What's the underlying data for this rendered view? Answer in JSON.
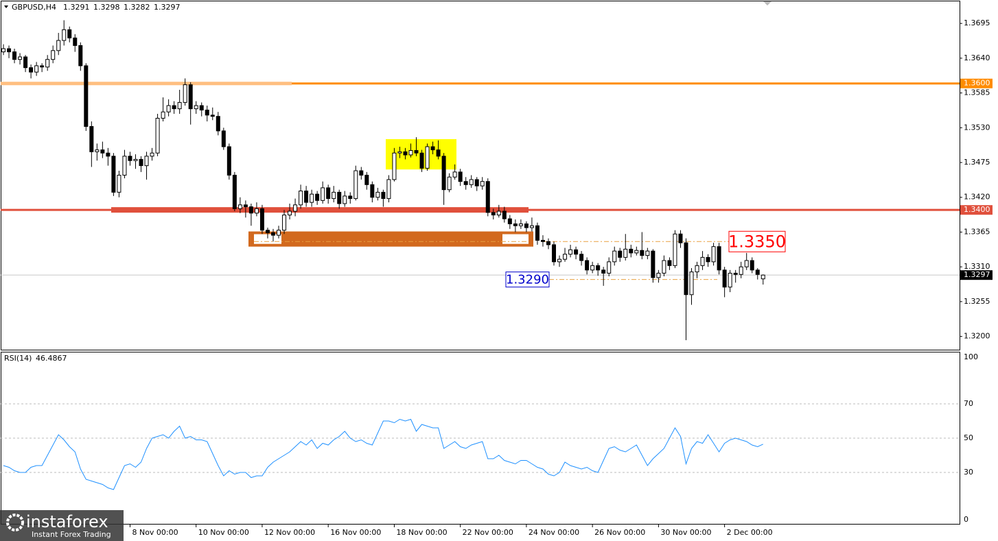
{
  "chart_data": {
    "type": "candlestick",
    "symbol": "GBPUSD,H4",
    "categories": [
      null,
      null,
      null,
      null,
      null,
      null,
      null,
      null,
      null,
      null,
      null,
      null,
      null,
      null,
      null,
      null,
      null,
      null,
      null,
      null,
      null,
      null,
      null,
      "8 Nov 00:00",
      null,
      null,
      null,
      null,
      null,
      null,
      null,
      null,
      null,
      null,
      null,
      "10 Nov 00:00",
      null,
      null,
      null,
      null,
      null,
      null,
      null,
      null,
      null,
      null,
      null,
      "12 Nov 00:00",
      null,
      null,
      null,
      null,
      null,
      null,
      null,
      null,
      null,
      null,
      null,
      "16 Nov 00:00",
      null,
      null,
      null,
      null,
      null,
      null,
      null,
      null,
      null,
      null,
      null,
      "18 Nov 00:00",
      null,
      null,
      null,
      null,
      null,
      null,
      null,
      null,
      null,
      null,
      null,
      "22 Nov 00:00",
      null,
      null,
      null,
      null,
      null,
      null,
      null,
      null,
      null,
      null,
      null,
      "24 Nov 00:00",
      null,
      null,
      null,
      null,
      null,
      null,
      null,
      null,
      null,
      null,
      null,
      "26 Nov 00:00",
      null,
      null,
      null,
      null,
      null,
      null,
      null,
      null,
      null,
      null,
      null,
      "30 Nov 00:00",
      null,
      null,
      null,
      null,
      null,
      null,
      null,
      null,
      null,
      null,
      null,
      "2 Dec 00:00",
      null,
      null,
      null,
      null,
      null,
      null,
      null
    ],
    "ohlc": [
      [
        1.365,
        1.3662,
        1.3645,
        1.3655
      ],
      [
        1.3655,
        1.366,
        1.364,
        1.365
      ],
      [
        1.365,
        1.3655,
        1.3632,
        1.3638
      ],
      [
        1.3638,
        1.3648,
        1.363,
        1.3642
      ],
      [
        1.3642,
        1.3645,
        1.3618,
        1.3625
      ],
      [
        1.3625,
        1.363,
        1.3608,
        1.3618
      ],
      [
        1.3618,
        1.3634,
        1.3612,
        1.3628
      ],
      [
        1.3628,
        1.3632,
        1.3618,
        1.3626
      ],
      [
        1.3626,
        1.3645,
        1.362,
        1.3638
      ],
      [
        1.3638,
        1.366,
        1.3632,
        1.3652
      ],
      [
        1.3652,
        1.368,
        1.3645,
        1.3668
      ],
      [
        1.3668,
        1.37,
        1.366,
        1.3685
      ],
      [
        1.3685,
        1.369,
        1.3665,
        1.3672
      ],
      [
        1.3672,
        1.3678,
        1.365,
        1.366
      ],
      [
        1.366,
        1.3665,
        1.362,
        1.3628
      ],
      [
        1.3628,
        1.3632,
        1.3525,
        1.3532
      ],
      [
        1.3532,
        1.354,
        1.3468,
        1.3492
      ],
      [
        1.3492,
        1.3505,
        1.3478,
        1.3495
      ],
      [
        1.3495,
        1.3508,
        1.3482,
        1.349
      ],
      [
        1.349,
        1.3498,
        1.347,
        1.3485
      ],
      [
        1.3485,
        1.349,
        1.3422,
        1.3428
      ],
      [
        1.3428,
        1.3462,
        1.342,
        1.3455
      ],
      [
        1.3455,
        1.3495,
        1.345,
        1.3485
      ],
      [
        1.3485,
        1.3492,
        1.347,
        1.3478
      ],
      [
        1.3478,
        1.3488,
        1.3465,
        1.348
      ],
      [
        1.348,
        1.3485,
        1.346,
        1.347
      ],
      [
        1.347,
        1.3492,
        1.3448,
        1.3485
      ],
      [
        1.3485,
        1.3498,
        1.3478,
        1.349
      ],
      [
        1.349,
        1.3552,
        1.3485,
        1.3545
      ],
      [
        1.3545,
        1.3578,
        1.354,
        1.3555
      ],
      [
        1.3555,
        1.3575,
        1.3548,
        1.3565
      ],
      [
        1.3565,
        1.3572,
        1.3552,
        1.356
      ],
      [
        1.356,
        1.359,
        1.3552,
        1.357
      ],
      [
        1.357,
        1.3608,
        1.3565,
        1.3598
      ],
      [
        1.3598,
        1.3602,
        1.3535,
        1.356
      ],
      [
        1.356,
        1.3572,
        1.3552,
        1.3565
      ],
      [
        1.3565,
        1.357,
        1.3548,
        1.3558
      ],
      [
        1.3558,
        1.3565,
        1.354,
        1.355
      ],
      [
        1.355,
        1.3562,
        1.3542,
        1.3548
      ],
      [
        1.3548,
        1.3555,
        1.3518,
        1.3525
      ],
      [
        1.3525,
        1.353,
        1.3495,
        1.35
      ],
      [
        1.35,
        1.3505,
        1.3448,
        1.3455
      ],
      [
        1.3455,
        1.346,
        1.3398,
        1.3402
      ],
      [
        1.3402,
        1.342,
        1.3395,
        1.3408
      ],
      [
        1.3408,
        1.3415,
        1.3388,
        1.3405
      ],
      [
        1.3405,
        1.341,
        1.3375,
        1.3395
      ],
      [
        1.3395,
        1.3412,
        1.339,
        1.3402
      ],
      [
        1.3402,
        1.3408,
        1.3362,
        1.3368
      ],
      [
        1.3368,
        1.3372,
        1.3355,
        1.3364
      ],
      [
        1.3364,
        1.337,
        1.335,
        1.336
      ],
      [
        1.336,
        1.3375,
        1.3355,
        1.3368
      ],
      [
        1.3368,
        1.34,
        1.3362,
        1.3392
      ],
      [
        1.3392,
        1.341,
        1.3385,
        1.3398
      ],
      [
        1.3398,
        1.3418,
        1.339,
        1.3408
      ],
      [
        1.3408,
        1.344,
        1.3402,
        1.343
      ],
      [
        1.343,
        1.3438,
        1.3405,
        1.3412
      ],
      [
        1.3412,
        1.3432,
        1.3405,
        1.3425
      ],
      [
        1.3425,
        1.343,
        1.3408,
        1.3415
      ],
      [
        1.3415,
        1.3445,
        1.341,
        1.3435
      ],
      [
        1.3435,
        1.344,
        1.341,
        1.3418
      ],
      [
        1.3418,
        1.3438,
        1.3412,
        1.3428
      ],
      [
        1.3428,
        1.3432,
        1.3402,
        1.341
      ],
      [
        1.341,
        1.343,
        1.3405,
        1.3422
      ],
      [
        1.3422,
        1.3428,
        1.341,
        1.3418
      ],
      [
        1.3418,
        1.347,
        1.3415,
        1.3462
      ],
      [
        1.3462,
        1.3468,
        1.3448,
        1.3455
      ],
      [
        1.3455,
        1.346,
        1.3432,
        1.344
      ],
      [
        1.344,
        1.3445,
        1.3412,
        1.342
      ],
      [
        1.342,
        1.3435,
        1.3415,
        1.3428
      ],
      [
        1.3428,
        1.3432,
        1.3405,
        1.3418
      ],
      [
        1.3418,
        1.3455,
        1.3412,
        1.3448
      ],
      [
        1.3448,
        1.3498,
        1.3445,
        1.349
      ],
      [
        1.349,
        1.35,
        1.3482,
        1.3492
      ],
      [
        1.3492,
        1.3498,
        1.348,
        1.3487
      ],
      [
        1.3487,
        1.3505,
        1.3483,
        1.3494
      ],
      [
        1.3494,
        1.3515,
        1.3485,
        1.349
      ],
      [
        1.349,
        1.3495,
        1.346,
        1.3466
      ],
      [
        1.3466,
        1.3505,
        1.3462,
        1.35
      ],
      [
        1.35,
        1.3508,
        1.3488,
        1.3495
      ],
      [
        1.3495,
        1.351,
        1.348,
        1.3485
      ],
      [
        1.3485,
        1.349,
        1.3408,
        1.3432
      ],
      [
        1.3432,
        1.3458,
        1.3428,
        1.3452
      ],
      [
        1.3452,
        1.3472,
        1.3448,
        1.346
      ],
      [
        1.346,
        1.3465,
        1.3438,
        1.3445
      ],
      [
        1.3445,
        1.3452,
        1.3432,
        1.344
      ],
      [
        1.344,
        1.3455,
        1.3435,
        1.3448
      ],
      [
        1.3448,
        1.3452,
        1.343,
        1.3438
      ],
      [
        1.3438,
        1.3452,
        1.3432,
        1.3445
      ],
      [
        1.3445,
        1.345,
        1.339,
        1.3396
      ],
      [
        1.3396,
        1.3402,
        1.3385,
        1.3392
      ],
      [
        1.3392,
        1.3408,
        1.3388,
        1.3398
      ],
      [
        1.3398,
        1.3405,
        1.338,
        1.3386
      ],
      [
        1.3386,
        1.3392,
        1.337,
        1.3378
      ],
      [
        1.3378,
        1.3385,
        1.3365,
        1.3375
      ],
      [
        1.3375,
        1.3385,
        1.337,
        1.3378
      ],
      [
        1.3378,
        1.3382,
        1.3365,
        1.3372
      ],
      [
        1.3372,
        1.3388,
        1.3366,
        1.3375
      ],
      [
        1.3375,
        1.338,
        1.3345,
        1.3352
      ],
      [
        1.3352,
        1.336,
        1.3342,
        1.335
      ],
      [
        1.335,
        1.3355,
        1.3338,
        1.3345
      ],
      [
        1.3345,
        1.335,
        1.3312,
        1.3318
      ],
      [
        1.3318,
        1.3328,
        1.331,
        1.3322
      ],
      [
        1.3322,
        1.334,
        1.3318,
        1.333
      ],
      [
        1.333,
        1.3345,
        1.3325,
        1.3337
      ],
      [
        1.3337,
        1.3342,
        1.3322,
        1.333
      ],
      [
        1.333,
        1.3335,
        1.3312,
        1.332
      ],
      [
        1.332,
        1.3325,
        1.3298,
        1.3305
      ],
      [
        1.3305,
        1.3318,
        1.33,
        1.3312
      ],
      [
        1.3312,
        1.3316,
        1.3296,
        1.3305
      ],
      [
        1.3305,
        1.331,
        1.328,
        1.33
      ],
      [
        1.33,
        1.3325,
        1.3295,
        1.3318
      ],
      [
        1.3318,
        1.3342,
        1.3312,
        1.3335
      ],
      [
        1.3335,
        1.334,
        1.3318,
        1.3325
      ],
      [
        1.3325,
        1.3362,
        1.332,
        1.3338
      ],
      [
        1.3338,
        1.3345,
        1.3325,
        1.3332
      ],
      [
        1.3332,
        1.3342,
        1.3328,
        1.3336
      ],
      [
        1.3336,
        1.3365,
        1.3322,
        1.3328
      ],
      [
        1.3328,
        1.334,
        1.3322,
        1.3335
      ],
      [
        1.3335,
        1.3338,
        1.3285,
        1.3293
      ],
      [
        1.3293,
        1.3305,
        1.3285,
        1.33
      ],
      [
        1.33,
        1.3328,
        1.3295,
        1.332
      ],
      [
        1.332,
        1.3325,
        1.3305,
        1.3312
      ],
      [
        1.3312,
        1.3368,
        1.3308,
        1.3362
      ],
      [
        1.3362,
        1.3368,
        1.334,
        1.3348
      ],
      [
        1.3348,
        1.3355,
        1.3194,
        1.3266
      ],
      [
        1.3266,
        1.3308,
        1.325,
        1.3302
      ],
      [
        1.3302,
        1.3318,
        1.3292,
        1.3312
      ],
      [
        1.3312,
        1.3335,
        1.3305,
        1.3325
      ],
      [
        1.3325,
        1.333,
        1.331,
        1.3318
      ],
      [
        1.3318,
        1.3348,
        1.3312,
        1.3342
      ],
      [
        1.3342,
        1.3348,
        1.3298,
        1.3305
      ],
      [
        1.3305,
        1.331,
        1.3262,
        1.3278
      ],
      [
        1.3278,
        1.3305,
        1.327,
        1.33
      ],
      [
        1.33,
        1.3305,
        1.3285,
        1.3298
      ],
      [
        1.3298,
        1.3318,
        1.3292,
        1.331
      ],
      [
        1.331,
        1.3332,
        1.3305,
        1.332
      ],
      [
        1.332,
        1.3325,
        1.33,
        1.3305
      ],
      [
        1.3305,
        1.3308,
        1.329,
        1.3298
      ],
      [
        1.3291,
        1.3298,
        1.3282,
        1.3297
      ]
    ],
    "ylim": [
      1.3179,
      1.3732
    ],
    "yticks": [
      1.3695,
      {
        "value": 1.364,
        "label": "1.3640"
      },
      1.3585,
      {
        "value": 1.353,
        "label": "1.3530"
      },
      1.3475,
      {
        "value": 1.342,
        "label": "1.3420"
      },
      1.3365,
      {
        "value": 1.331,
        "label": "1.3310"
      },
      1.3255,
      {
        "value": 1.32,
        "label": "1.3200"
      }
    ],
    "levels": [
      {
        "value": 1.36,
        "label": "1.3600",
        "color": "#ff8c00"
      },
      {
        "value": 1.34,
        "label": "1.3400",
        "color": "#e0503c"
      },
      {
        "value": 1.3297,
        "label": "1.3297",
        "color": "#000000",
        "line_color": "#c8c8c8"
      }
    ],
    "zones": [
      {
        "range": [
          1.3464,
          1.3512
        ],
        "color": "#ffff00"
      },
      {
        "range": [
          1.3342,
          1.3366
        ],
        "color": "#d2691e"
      }
    ],
    "annotations": [
      {
        "value": 1.335,
        "label": "1.3350",
        "color": "#ff0000"
      },
      {
        "value": 1.329,
        "label": "1.3290",
        "color": "#0000cc"
      }
    ],
    "rsi": {
      "name": "RSI(14)",
      "color": "#1e90ff",
      "values": [
        34,
        33,
        31,
        30,
        30,
        33,
        34,
        34,
        40,
        46,
        52,
        49,
        45,
        42,
        32,
        26,
        25,
        24,
        23,
        21,
        20,
        27,
        34,
        35,
        33,
        36,
        44,
        50,
        51,
        52,
        50,
        54,
        57,
        50,
        51,
        49,
        49,
        48,
        41,
        34,
        28,
        31,
        29,
        30,
        30,
        27,
        28,
        28,
        33,
        36,
        38,
        40,
        42,
        45,
        48,
        46,
        49,
        44,
        47,
        46,
        49,
        51,
        54,
        50,
        48,
        49,
        47,
        46,
        53,
        60,
        60,
        59,
        61,
        60,
        61,
        54,
        58,
        57,
        56,
        56,
        44,
        46,
        48,
        45,
        44,
        46,
        47,
        48,
        38,
        38,
        40,
        37,
        36,
        35,
        37,
        37,
        35,
        33,
        32,
        29,
        28,
        30,
        36,
        34,
        33,
        32,
        33,
        31,
        30,
        37,
        44,
        45,
        43,
        42,
        44,
        46,
        40,
        34,
        38,
        41,
        44,
        50,
        56,
        51,
        35,
        44,
        48,
        47,
        52,
        47,
        42,
        47,
        49,
        50,
        49,
        48,
        46,
        45,
        46.4867
      ],
      "ylim": [
        0,
        100
      ],
      "yticks": [
        0,
        30,
        50,
        70,
        100
      ]
    }
  },
  "watermark": {
    "name": "instaforex",
    "tagline": "Instant Forex Trading"
  }
}
